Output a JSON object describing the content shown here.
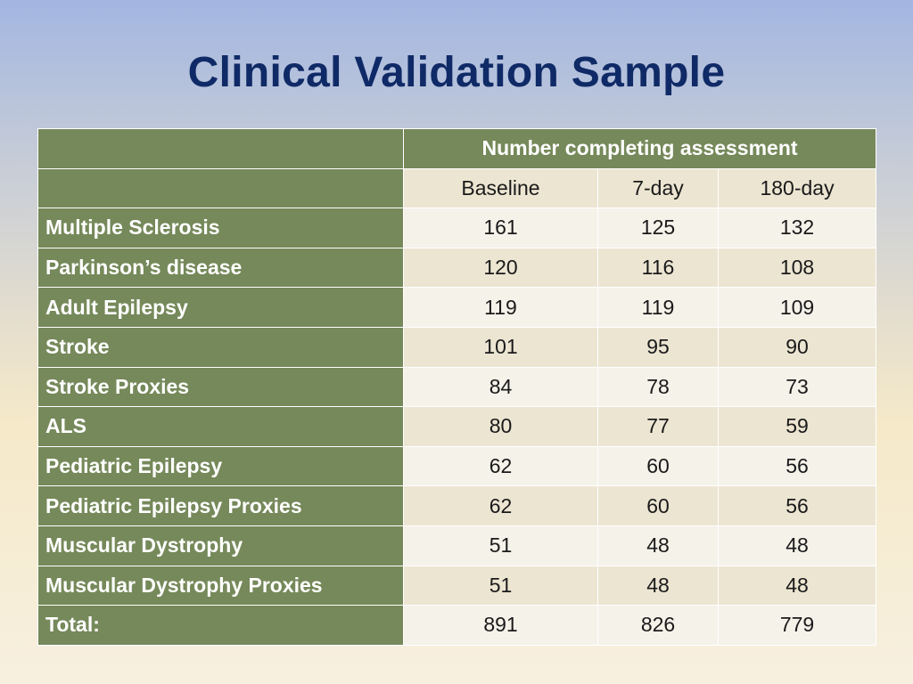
{
  "slide": {
    "title": "Clinical Validation Sample"
  },
  "table": {
    "group_header": "Number completing assessment",
    "columns": [
      "Baseline",
      "7-day",
      "180-day"
    ],
    "rows": [
      {
        "label": "Multiple Sclerosis",
        "values": [
          "161",
          "125",
          "132"
        ]
      },
      {
        "label": "Parkinson’s disease",
        "values": [
          "120",
          "116",
          "108"
        ]
      },
      {
        "label": "Adult Epilepsy",
        "values": [
          "119",
          "119",
          "109"
        ]
      },
      {
        "label": "Stroke",
        "values": [
          "101",
          "95",
          "90"
        ]
      },
      {
        "label": "Stroke Proxies",
        "values": [
          "84",
          "78",
          "73"
        ]
      },
      {
        "label": "ALS",
        "values": [
          "80",
          "77",
          "59"
        ]
      },
      {
        "label": "Pediatric Epilepsy",
        "values": [
          "62",
          "60",
          "56"
        ]
      },
      {
        "label": "Pediatric Epilepsy Proxies",
        "values": [
          "62",
          "60",
          "56"
        ]
      },
      {
        "label": "Muscular Dystrophy",
        "values": [
          "51",
          "48",
          "48"
        ]
      },
      {
        "label": "Muscular Dystrophy Proxies",
        "values": [
          "51",
          "48",
          "48"
        ]
      },
      {
        "label": "Total:",
        "values": [
          "891",
          "826",
          "779"
        ]
      }
    ]
  },
  "colors": {
    "header_green": "#76895a",
    "title_navy": "#0f2a66",
    "cell_light": "#f5f2ea",
    "cell_tan": "#ece5d2"
  }
}
